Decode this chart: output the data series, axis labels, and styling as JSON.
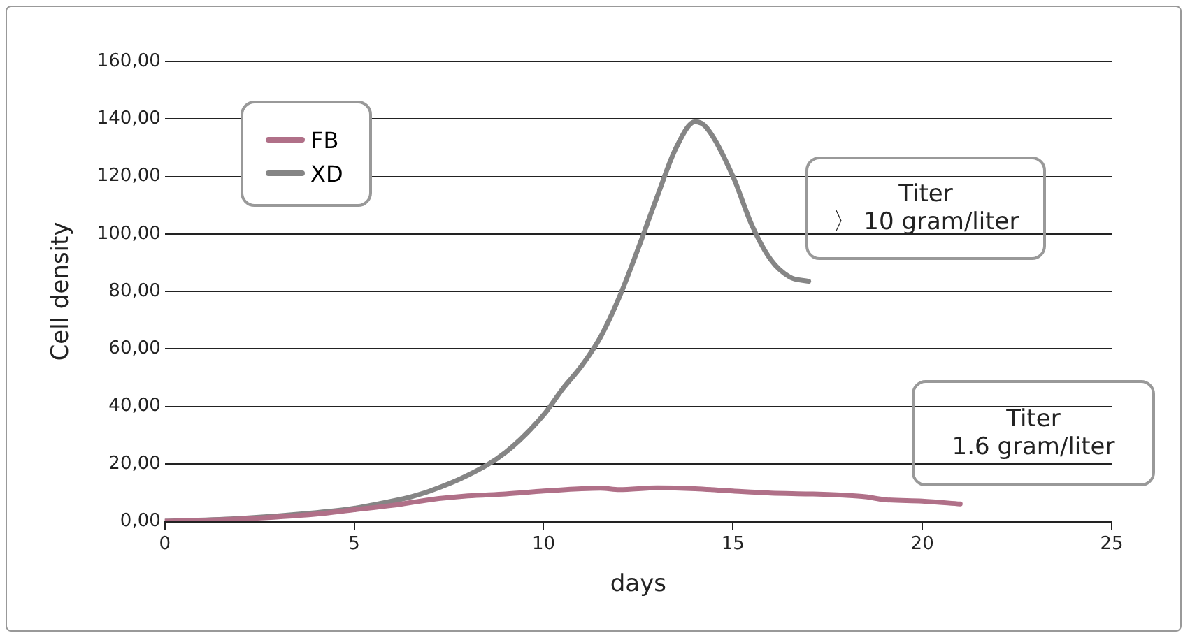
{
  "chart_data": {
    "type": "line",
    "xlabel": "days",
    "ylabel": "Cell density",
    "xlim": [
      0,
      25
    ],
    "xticks": [
      0,
      5,
      10,
      15,
      20,
      25
    ],
    "ylim": [
      0,
      160
    ],
    "yticks": [
      {
        "value": 0,
        "label": "0,00"
      },
      {
        "value": 20,
        "label": "20,00"
      },
      {
        "value": 40,
        "label": "40,00"
      },
      {
        "value": 60,
        "label": "60,00"
      },
      {
        "value": 80,
        "label": "80,00"
      },
      {
        "value": 100,
        "label": "100,00"
      },
      {
        "value": 120,
        "label": "120,00"
      },
      {
        "value": 140,
        "label": "140,00"
      },
      {
        "value": 160,
        "label": "160,00"
      }
    ],
    "grid": "y",
    "legend": "top left",
    "marker": "none",
    "line_style": "solid",
    "series": [
      {
        "name": "FB",
        "color": "#b07088",
        "x": [
          0,
          2,
          4,
          5,
          6,
          7,
          8,
          9,
          10,
          11,
          11.5,
          12,
          13,
          14,
          15,
          16,
          17,
          18,
          18.5,
          19,
          20,
          21
        ],
        "values": [
          0,
          0.8,
          2.5,
          4,
          5.5,
          7.5,
          8.8,
          9.5,
          10.5,
          11.3,
          11.5,
          11,
          11.6,
          11.3,
          10.5,
          9.8,
          9.5,
          9,
          8.5,
          7.5,
          7,
          6
        ]
      },
      {
        "name": "XD",
        "color": "#858585",
        "x": [
          0,
          2,
          4,
          5,
          6,
          6.5,
          7,
          8,
          9,
          10,
          10.5,
          11,
          11.5,
          12,
          12.5,
          13,
          13.5,
          14,
          14.3,
          15,
          15.5,
          16,
          16.5,
          17
        ],
        "values": [
          0,
          1,
          3,
          4.5,
          7,
          8.5,
          10.5,
          16,
          24,
          37,
          46,
          54,
          64,
          78,
          95,
          113,
          130,
          139,
          137,
          120,
          103,
          91,
          85,
          83.5
        ]
      }
    ],
    "annotations": [
      "Titer\n〉 10 gram/liter",
      "Titer\n1.6 gram/liter"
    ]
  }
}
